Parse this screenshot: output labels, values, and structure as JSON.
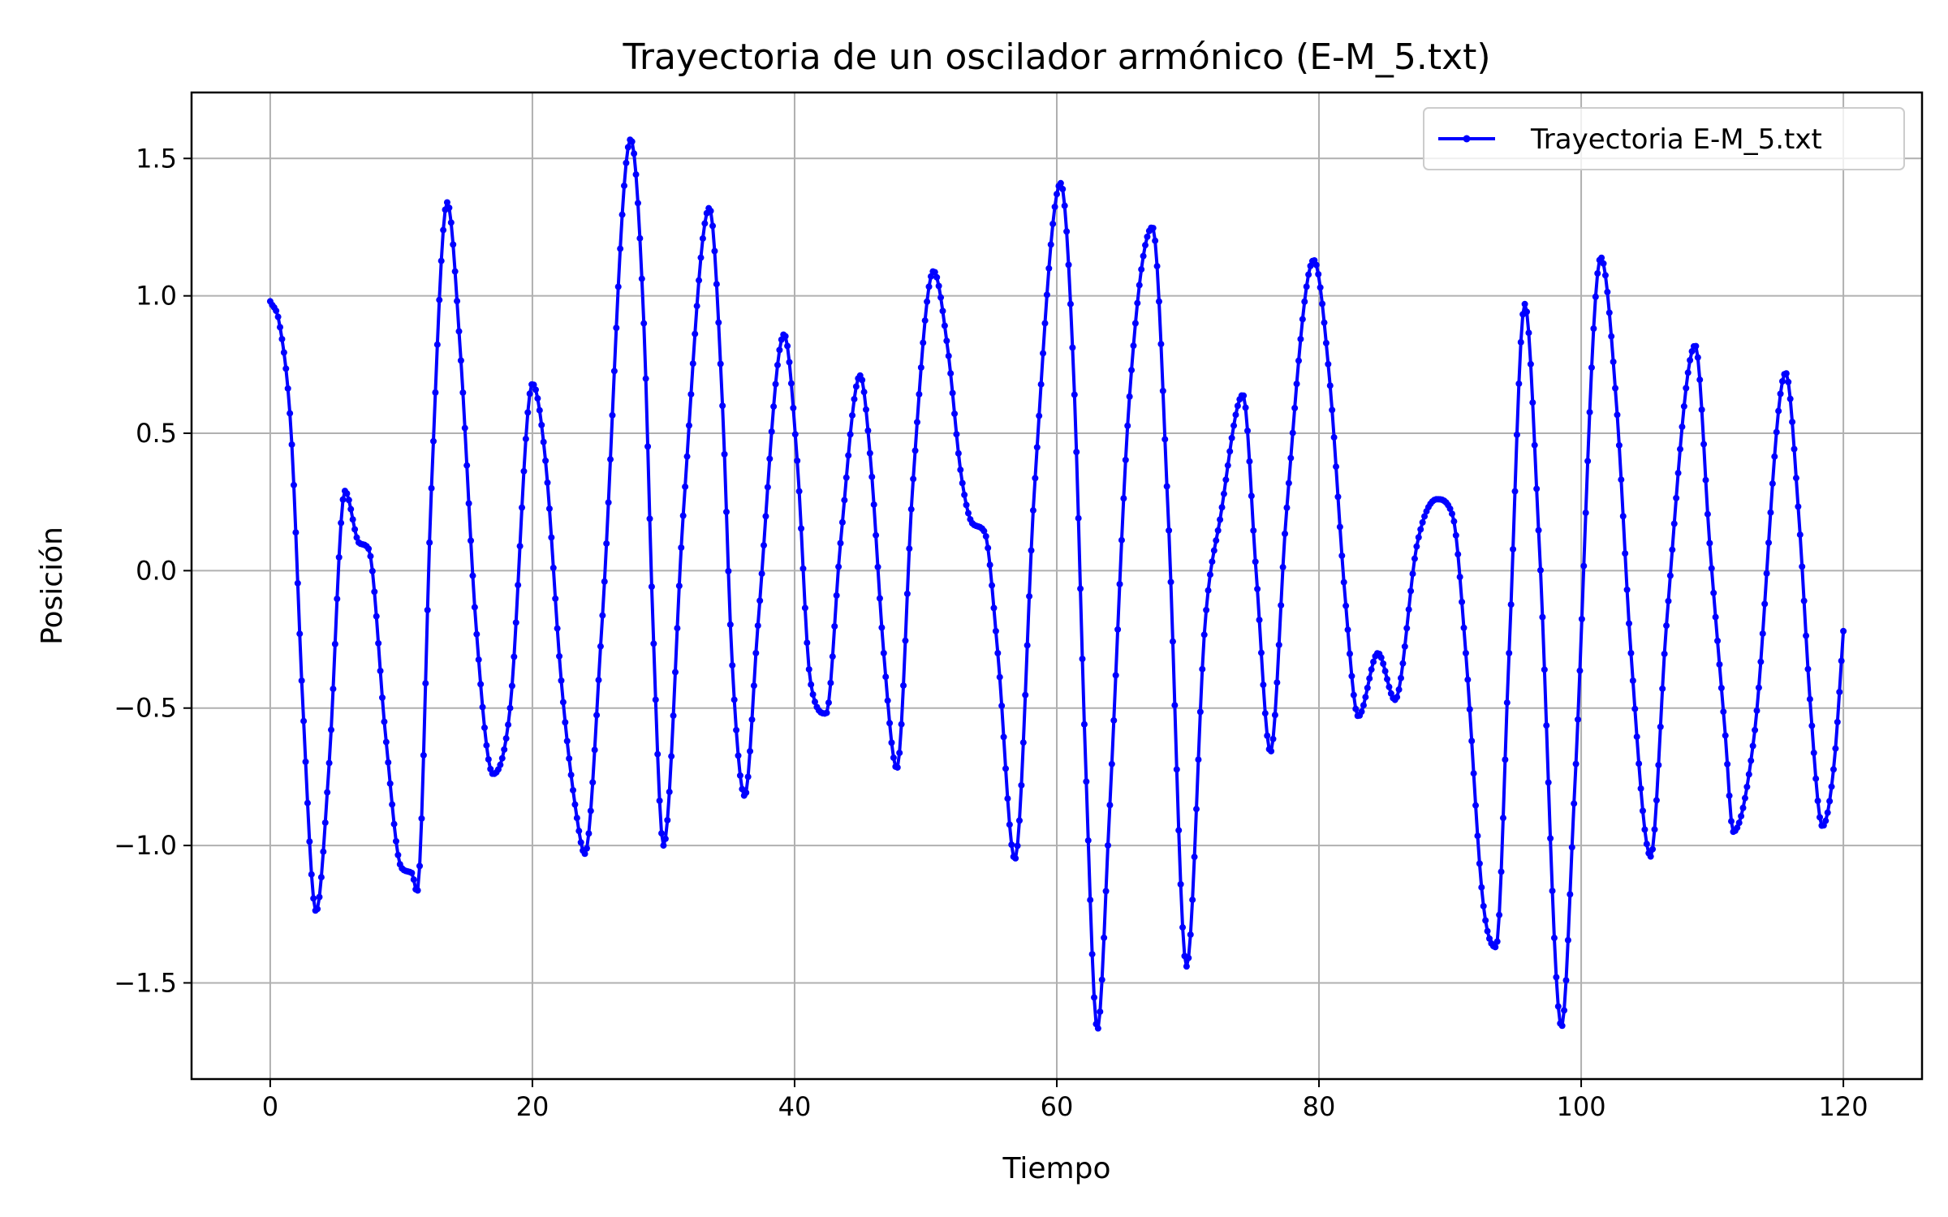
{
  "chart_data": {
    "type": "line",
    "title": "Trayectoria de un oscilador armónico (E-M_5.txt)",
    "xlabel": "Tiempo",
    "ylabel": "Posición",
    "xlim": [
      -6,
      126
    ],
    "ylim": [
      -1.85,
      1.74
    ],
    "xticks": [
      0,
      20,
      40,
      60,
      80,
      100,
      120
    ],
    "xtick_labels": [
      "0",
      "20",
      "40",
      "60",
      "80",
      "100",
      "120"
    ],
    "yticks": [
      -1.5,
      -1.0,
      -0.5,
      0.0,
      0.5,
      1.0,
      1.5
    ],
    "ytick_labels": [
      "−1.5",
      "−1.0",
      "−0.5",
      "0.0",
      "0.5",
      "1.0",
      "1.5"
    ],
    "grid": true,
    "legend_position": "top-right",
    "series": [
      {
        "name": "Trayectoria E-M_5.txt",
        "color": "#0000ff",
        "marker": "dot",
        "keypoints": [
          [
            0,
            0.98
          ],
          [
            0.7,
            0.9
          ],
          [
            1.6,
            0.5
          ],
          [
            2.5,
            -0.5
          ],
          [
            3.5,
            -1.24
          ],
          [
            4.5,
            -0.7
          ],
          [
            5.7,
            0.29
          ],
          [
            6.8,
            0.1
          ],
          [
            7.5,
            0.08
          ],
          [
            8.8,
            -0.6
          ],
          [
            10,
            -1.08
          ],
          [
            10.8,
            -1.1
          ],
          [
            11.2,
            -1.17
          ],
          [
            12.3,
            0.3
          ],
          [
            13.5,
            1.34
          ],
          [
            14.5,
            0.8
          ],
          [
            15.7,
            -0.2
          ],
          [
            17,
            -0.74
          ],
          [
            18.3,
            -0.5
          ],
          [
            20,
            0.68
          ],
          [
            21,
            0.4
          ],
          [
            22.2,
            -0.4
          ],
          [
            23.4,
            -0.9
          ],
          [
            24,
            -1.03
          ],
          [
            25.3,
            -0.2
          ],
          [
            27.5,
            1.57
          ],
          [
            28.5,
            0.9
          ],
          [
            29.2,
            -0.2
          ],
          [
            30,
            -1.0
          ],
          [
            31.5,
            0.2
          ],
          [
            33.5,
            1.32
          ],
          [
            34.5,
            0.6
          ],
          [
            35.2,
            -0.3
          ],
          [
            36.2,
            -0.82
          ],
          [
            37.2,
            -0.2
          ],
          [
            39.2,
            0.86
          ],
          [
            40.2,
            0.4
          ],
          [
            41.2,
            -0.4
          ],
          [
            42.4,
            -0.52
          ],
          [
            43.5,
            0.1
          ],
          [
            45,
            0.71
          ],
          [
            45.8,
            0.4
          ],
          [
            46.8,
            -0.3
          ],
          [
            47.8,
            -0.72
          ],
          [
            49,
            0.3
          ],
          [
            50.6,
            1.09
          ],
          [
            51.7,
            0.8
          ],
          [
            52.7,
            0.35
          ],
          [
            53.6,
            0.17
          ],
          [
            54.5,
            0.14
          ],
          [
            55.5,
            -0.3
          ],
          [
            56.8,
            -1.05
          ],
          [
            58.3,
            0.3
          ],
          [
            60.3,
            1.41
          ],
          [
            61.3,
            0.7
          ],
          [
            62.2,
            -0.7
          ],
          [
            63.1,
            -1.67
          ],
          [
            64,
            -0.9
          ],
          [
            65.5,
            0.6
          ],
          [
            67.3,
            1.25
          ],
          [
            68.5,
            0.2
          ],
          [
            69.9,
            -1.44
          ],
          [
            71.3,
            -0.2
          ],
          [
            72.5,
            0.2
          ],
          [
            74.2,
            0.64
          ],
          [
            75.2,
            0.0
          ],
          [
            76.3,
            -0.66
          ],
          [
            77.5,
            0.2
          ],
          [
            79.6,
            1.13
          ],
          [
            80.8,
            0.7
          ],
          [
            82,
            -0.1
          ],
          [
            83,
            -0.53
          ],
          [
            84.5,
            -0.3
          ],
          [
            85.8,
            -0.47
          ],
          [
            87.5,
            0.1
          ],
          [
            89,
            0.26
          ],
          [
            90.2,
            0.2
          ],
          [
            91.2,
            -0.3
          ],
          [
            92.5,
            -1.2
          ],
          [
            93.5,
            -1.37
          ],
          [
            94.5,
            -0.3
          ],
          [
            95.7,
            0.97
          ],
          [
            96.8,
            0.1
          ],
          [
            98.5,
            -1.66
          ],
          [
            99.5,
            -0.8
          ],
          [
            101.5,
            1.14
          ],
          [
            102.7,
            0.6
          ],
          [
            103.8,
            -0.3
          ],
          [
            105.3,
            -1.04
          ],
          [
            106.5,
            -0.2
          ],
          [
            108.7,
            0.82
          ],
          [
            109.8,
            0.1
          ],
          [
            111,
            -0.6
          ],
          [
            111.6,
            -0.95
          ],
          [
            113.2,
            -0.6
          ],
          [
            115.6,
            0.72
          ],
          [
            116.6,
            0.2
          ],
          [
            117.5,
            -0.5
          ],
          [
            118.4,
            -0.93
          ],
          [
            119.3,
            -0.7
          ],
          [
            120,
            -0.22
          ]
        ]
      }
    ]
  }
}
